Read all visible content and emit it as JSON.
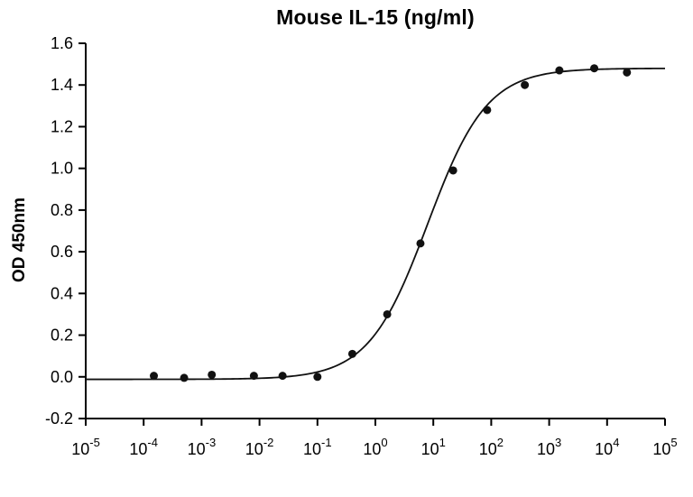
{
  "chart_data": {
    "type": "scatter",
    "title": "Mouse IL-15 (ng/ml)",
    "ylabel": "OD 450nm",
    "xlabel": "",
    "x_scale": "log10",
    "xlim_exponents": [
      -5,
      5
    ],
    "ylim": [
      -0.2,
      1.6
    ],
    "y_tick_step": 0.2,
    "grid": false,
    "legend": false,
    "background": "#ffffff",
    "axis_color": "#000000",
    "line_color": "#111111",
    "marker": {
      "shape": "circle",
      "color": "#111111",
      "size": 4.5
    },
    "points": [
      [
        0.00015,
        0.005
      ],
      [
        0.0005,
        -0.005
      ],
      [
        0.0015,
        0.01
      ],
      [
        0.008,
        0.005
      ],
      [
        0.025,
        0.005
      ],
      [
        0.1,
        0.0
      ],
      [
        0.4,
        0.11
      ],
      [
        1.6,
        0.3
      ],
      [
        6,
        0.64
      ],
      [
        22,
        0.99
      ],
      [
        85,
        1.28
      ],
      [
        380,
        1.4
      ],
      [
        1500,
        1.47
      ],
      [
        6000,
        1.48
      ],
      [
        22000,
        1.46
      ]
    ],
    "curve_fit": {
      "model": "4PL",
      "bottom": -0.012,
      "top": 1.48,
      "ec50": 8,
      "hill": 0.85
    }
  }
}
